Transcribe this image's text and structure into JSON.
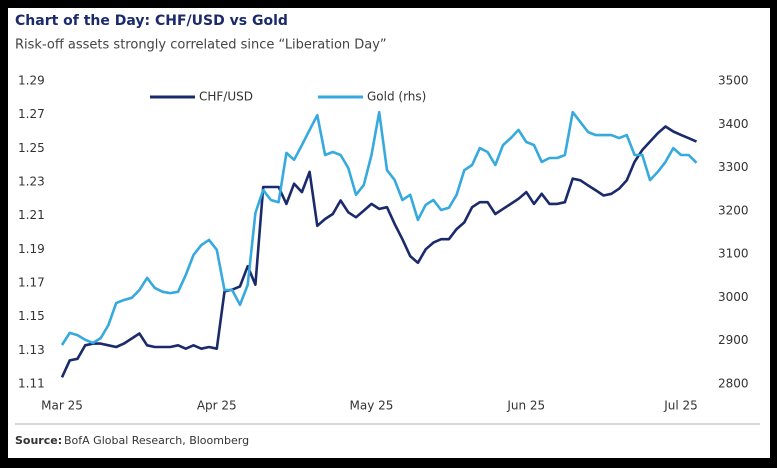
{
  "chart_data": {
    "type": "line",
    "title": "Chart of the Day: CHF/USD vs Gold",
    "subtitle": "Risk-off assets strongly correlated since “Liberation Day”",
    "source_label": "Source:",
    "source": "BofA Global Research, Bloomberg",
    "categories": [
      "Mar 25",
      null,
      null,
      null,
      null,
      null,
      null,
      null,
      null,
      null,
      null,
      null,
      null,
      null,
      null,
      null,
      null,
      null,
      null,
      null,
      "Apr 25",
      null,
      null,
      null,
      null,
      null,
      null,
      null,
      null,
      null,
      null,
      null,
      null,
      null,
      null,
      null,
      null,
      null,
      null,
      null,
      "May 25",
      null,
      null,
      null,
      null,
      null,
      null,
      null,
      null,
      null,
      null,
      null,
      null,
      null,
      null,
      null,
      null,
      null,
      null,
      null,
      "Jun 25",
      null,
      null,
      null,
      null,
      null,
      null,
      null,
      null,
      null,
      null,
      null,
      null,
      null,
      null,
      null,
      null,
      null,
      null,
      null,
      "Jul 25",
      null,
      null
    ],
    "series": [
      {
        "name": "CHF/USD",
        "color": "#1b2a6b",
        "values": [
          1.114,
          1.124,
          1.125,
          1.133,
          1.134,
          1.134,
          1.133,
          1.132,
          1.134,
          1.137,
          1.14,
          1.133,
          1.132,
          1.132,
          1.132,
          1.133,
          1.131,
          1.133,
          1.131,
          1.132,
          1.131,
          1.165,
          1.166,
          1.168,
          1.18,
          1.169,
          1.227,
          1.227,
          1.227,
          1.217,
          1.229,
          1.224,
          1.236,
          1.204,
          1.208,
          1.211,
          1.219,
          1.212,
          1.209,
          1.213,
          1.217,
          1.214,
          1.215,
          1.205,
          1.196,
          1.186,
          1.182,
          1.19,
          1.194,
          1.196,
          1.196,
          1.202,
          1.206,
          1.215,
          1.218,
          1.218,
          1.211,
          1.214,
          1.217,
          1.22,
          1.224,
          1.217,
          1.223,
          1.217,
          1.217,
          1.218,
          1.232,
          1.231,
          1.228,
          1.225,
          1.222,
          1.223,
          1.226,
          1.231,
          1.242,
          1.249,
          1.254,
          1.259,
          1.263,
          1.26,
          1.258,
          1.256,
          1.254
        ]
      },
      {
        "name": "Gold (rhs)",
        "color": "#36a9de",
        "axis": "y2",
        "values": [
          2890,
          2918,
          2913,
          2902,
          2895,
          2906,
          2936,
          2987,
          2994,
          2999,
          3017,
          3045,
          3022,
          3013,
          3010,
          3013,
          3052,
          3098,
          3121,
          3133,
          3110,
          3017,
          3017,
          2983,
          3029,
          3195,
          3248,
          3225,
          3220,
          3334,
          3318,
          3352,
          3387,
          3421,
          3329,
          3336,
          3329,
          3299,
          3237,
          3260,
          3329,
          3428,
          3294,
          3271,
          3225,
          3237,
          3179,
          3214,
          3225,
          3202,
          3207,
          3237,
          3294,
          3306,
          3345,
          3336,
          3306,
          3352,
          3368,
          3387,
          3359,
          3352,
          3313,
          3322,
          3322,
          3329,
          3428,
          3405,
          3382,
          3375,
          3375,
          3375,
          3368,
          3375,
          3329,
          3329,
          3271,
          3290,
          3313,
          3345,
          3329,
          3329,
          3311
        ]
      }
    ],
    "ylim": [
      1.11,
      1.29
    ],
    "yticks": [
      1.11,
      1.13,
      1.15,
      1.17,
      1.19,
      1.21,
      1.23,
      1.25,
      1.27,
      1.29
    ],
    "y2lim": [
      2800,
      3500
    ],
    "y2ticks": [
      2800,
      2900,
      3000,
      3100,
      3200,
      3300,
      3400,
      3500
    ],
    "grid": false
  }
}
